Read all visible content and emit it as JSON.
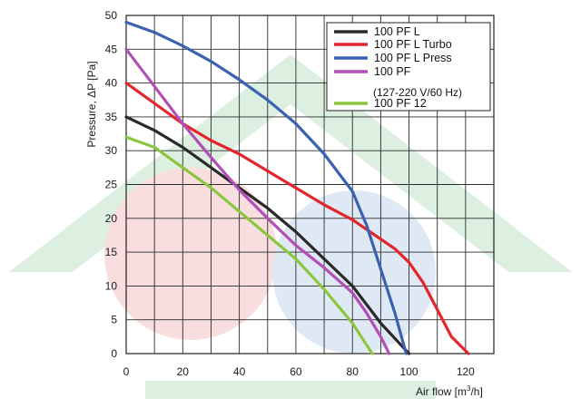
{
  "colors": {
    "grid": "#2b2b2b",
    "frame": "#222222",
    "watermark_green": "#dcefe0",
    "watermark_red": "#f8dede",
    "watermark_blue": "#dfe9f6"
  },
  "chart_data": {
    "type": "line",
    "xlabel_prefix": "Air flow [m",
    "xlabel_sup": "3",
    "xlabel_suffix": "/h]",
    "ylabel": "Pressure, ΔP [Pa]",
    "xlim": [
      0,
      130
    ],
    "ylim": [
      0,
      50
    ],
    "xticks": [
      0,
      20,
      40,
      60,
      80,
      100,
      120
    ],
    "yticks": [
      0,
      5,
      10,
      15,
      20,
      25,
      30,
      35,
      40,
      45,
      50
    ],
    "grid": true,
    "legend_position": "top-right",
    "legend_note": "(127-220 V/60 Hz)",
    "series": [
      {
        "name": "100 PF L",
        "color": "#2a2a2a",
        "points": [
          [
            0,
            35
          ],
          [
            10,
            33
          ],
          [
            20,
            30.5
          ],
          [
            30,
            27.5
          ],
          [
            40,
            24.5
          ],
          [
            50,
            21.5
          ],
          [
            60,
            18
          ],
          [
            70,
            14
          ],
          [
            80,
            10
          ],
          [
            90,
            4.5
          ],
          [
            100,
            0
          ]
        ]
      },
      {
        "name": "100 PF L Turbo",
        "color": "#e3262b",
        "points": [
          [
            0,
            40
          ],
          [
            10,
            37
          ],
          [
            20,
            34
          ],
          [
            30,
            31.5
          ],
          [
            40,
            29.5
          ],
          [
            50,
            27
          ],
          [
            60,
            24.5
          ],
          [
            70,
            22
          ],
          [
            80,
            19.8
          ],
          [
            88,
            17.5
          ],
          [
            95,
            15.5
          ],
          [
            100,
            13.5
          ],
          [
            105,
            10.5
          ],
          [
            110,
            6.5
          ],
          [
            115,
            2.5
          ],
          [
            121,
            0
          ]
        ]
      },
      {
        "name": "100 PF L Press",
        "color": "#3a62b0",
        "points": [
          [
            0,
            49
          ],
          [
            10,
            47.5
          ],
          [
            20,
            45.5
          ],
          [
            30,
            43.2
          ],
          [
            40,
            40.5
          ],
          [
            50,
            37.5
          ],
          [
            60,
            34
          ],
          [
            70,
            29.5
          ],
          [
            80,
            24
          ],
          [
            85,
            19
          ],
          [
            90,
            12.5
          ],
          [
            95,
            6
          ],
          [
            99,
            0
          ]
        ]
      },
      {
        "name": "100 PF",
        "color": "#b24fb6",
        "points": [
          [
            0,
            45
          ],
          [
            10,
            39.5
          ],
          [
            20,
            34
          ],
          [
            30,
            29
          ],
          [
            40,
            24.2
          ],
          [
            50,
            20
          ],
          [
            60,
            16
          ],
          [
            70,
            12.7
          ],
          [
            80,
            9
          ],
          [
            85,
            6
          ],
          [
            90,
            2.5
          ],
          [
            93,
            0
          ]
        ]
      },
      {
        "name": "100 PF 12",
        "color": "#8cc63f",
        "points": [
          [
            0,
            32
          ],
          [
            10,
            30.5
          ],
          [
            20,
            27.5
          ],
          [
            30,
            24.5
          ],
          [
            40,
            21
          ],
          [
            50,
            17.5
          ],
          [
            60,
            14
          ],
          [
            70,
            9.5
          ],
          [
            80,
            4.5
          ],
          [
            87,
            0
          ]
        ]
      }
    ]
  }
}
